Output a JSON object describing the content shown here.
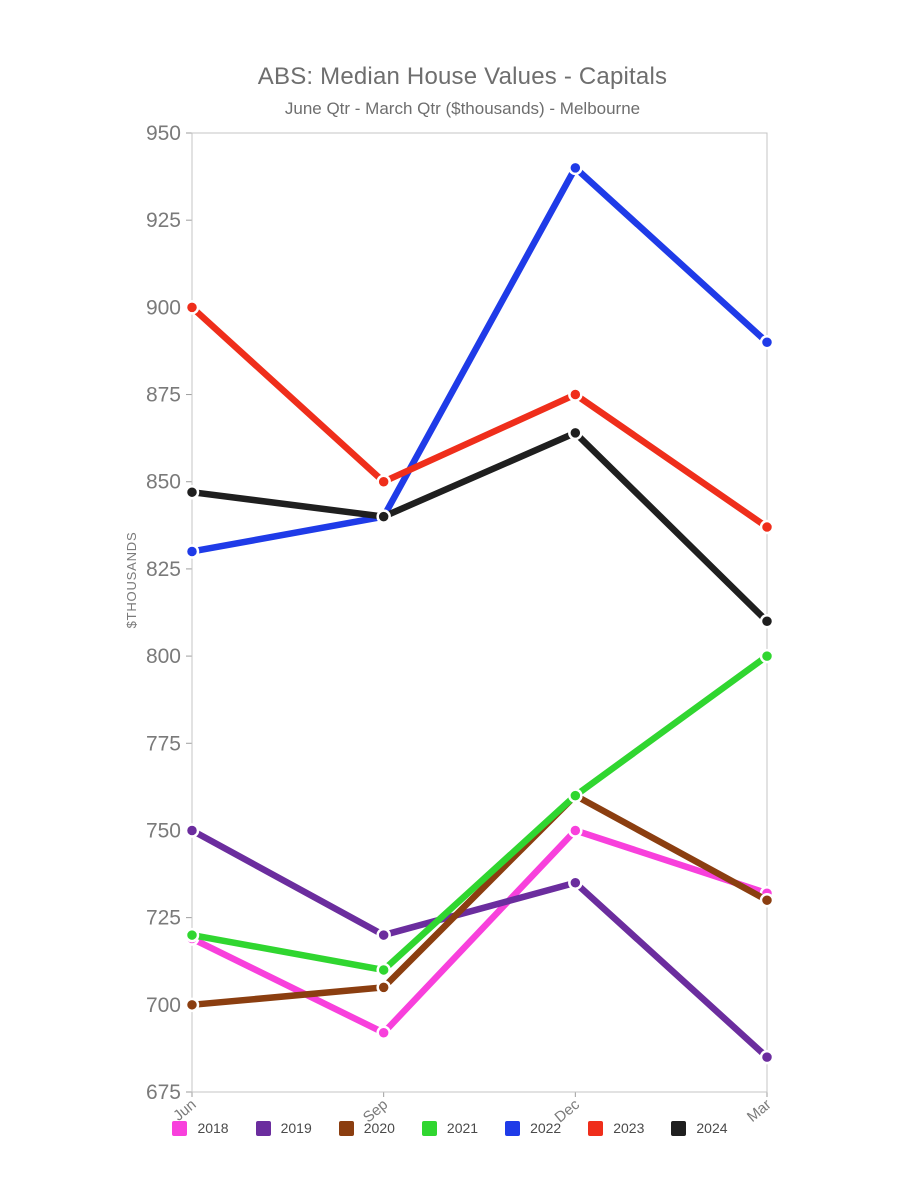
{
  "chart_data": {
    "type": "line",
    "title": "ABS: Median House Values - Capitals",
    "subtitle": "June Qtr - March Qtr ($thousands) - Melbourne",
    "ylabel": "$THOUSANDS",
    "categories": [
      "Jun",
      "Sep",
      "Dec",
      "Mar"
    ],
    "ylim": [
      675,
      950
    ],
    "ytick_step": 25,
    "grid": false,
    "legend_position": "bottom",
    "series": [
      {
        "name": "2018",
        "color": "#F840DC",
        "values": [
          719,
          692,
          750,
          732
        ]
      },
      {
        "name": "2019",
        "color": "#6B2D9E",
        "values": [
          750,
          720,
          735,
          685
        ]
      },
      {
        "name": "2020",
        "color": "#8B3E10",
        "values": [
          700,
          705,
          760,
          730
        ]
      },
      {
        "name": "2021",
        "color": "#30D630",
        "values": [
          720,
          710,
          760,
          800
        ]
      },
      {
        "name": "2022",
        "color": "#1F3BE8",
        "values": [
          830,
          840,
          940,
          890
        ]
      },
      {
        "name": "2023",
        "color": "#EF2E1B",
        "values": [
          900,
          850,
          875,
          837
        ]
      },
      {
        "name": "2024",
        "color": "#1F1F1F",
        "values": [
          847,
          840,
          864,
          810
        ]
      }
    ],
    "colors": {
      "axis_frame": "#C4C4C4",
      "tick_mark": "#9E9E9E",
      "tick_text": "#7A7A7A",
      "title_text": "#6E6E6E",
      "legend_text": "#4A4A4A",
      "point_ring": "#FFFFFF",
      "background": "#FFFFFF"
    }
  }
}
